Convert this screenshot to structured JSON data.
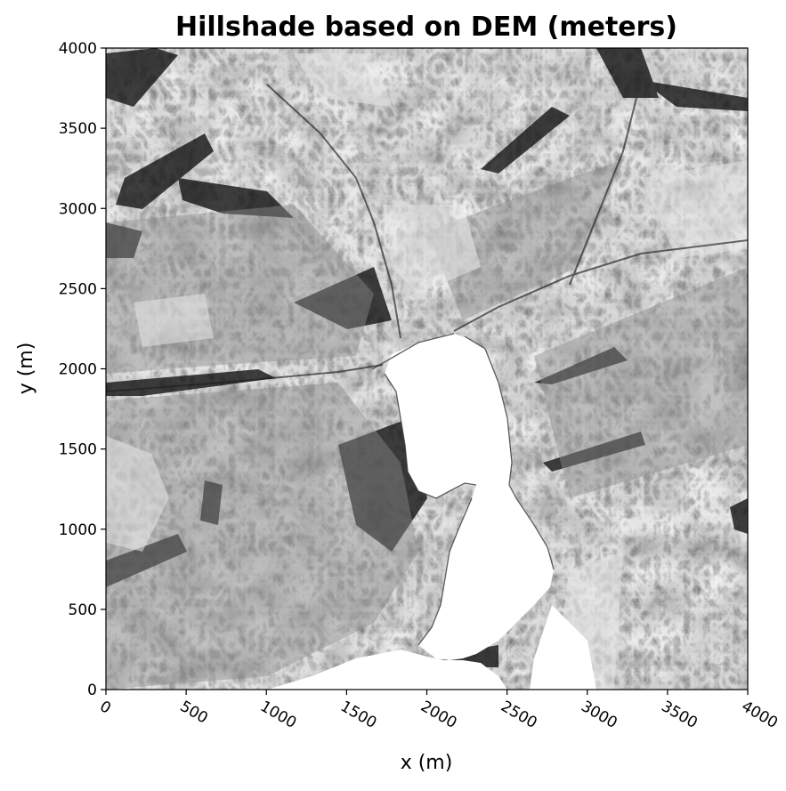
{
  "chart_data": {
    "type": "heatmap",
    "title": "Hillshade based on DEM (meters)",
    "xlabel": "x (m)",
    "ylabel": "y (m)",
    "xlim": [
      0,
      4000
    ],
    "ylim": [
      0,
      4000
    ],
    "xticks": [
      "0",
      "500",
      "1000",
      "1500",
      "2000",
      "2500",
      "3000",
      "3500",
      "4000"
    ],
    "yticks": [
      "0",
      "500",
      "1000",
      "1500",
      "2000",
      "2500",
      "3000",
      "3500",
      "4000"
    ],
    "xtick_rotation_deg": 30,
    "colormap": "gray",
    "grid": false,
    "colors": {
      "background": "#ffffff",
      "frame": "#000000",
      "lake": "#ffffff",
      "shadow": "#141414",
      "midtone": "#8c8c8c",
      "highlight": "#e6e6e6"
    }
  }
}
